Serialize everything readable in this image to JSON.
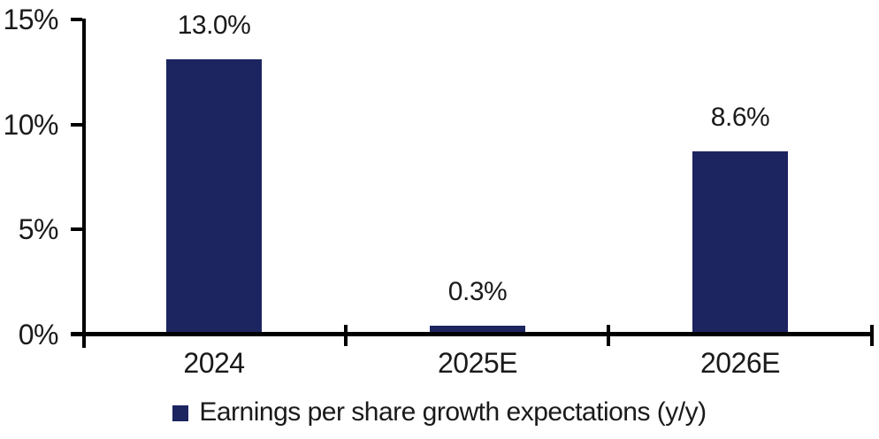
{
  "chart_data": {
    "type": "bar",
    "title": "",
    "categories": [
      "2024",
      "2025E",
      "2026E"
    ],
    "series": [
      {
        "name": "Earnings per share growth expectations (y/y)",
        "values": [
          13.0,
          0.3,
          8.6
        ],
        "data_labels": [
          "13.0%",
          "0.3%",
          "8.6%"
        ]
      }
    ],
    "ylim": [
      0,
      15
    ],
    "yticks": [
      {
        "value": 0,
        "label": "0%"
      },
      {
        "value": 5,
        "label": "5%"
      },
      {
        "value": 10,
        "label": "10%"
      },
      {
        "value": 15,
        "label": "15%"
      }
    ],
    "grid": "off",
    "legend_position": "bottom",
    "legend_swatch_icon": "filled-square",
    "colors": {
      "bar": "#1C2560",
      "axis": "#000000",
      "text": "#1A1A1A",
      "background": "#FFFFFF"
    }
  }
}
